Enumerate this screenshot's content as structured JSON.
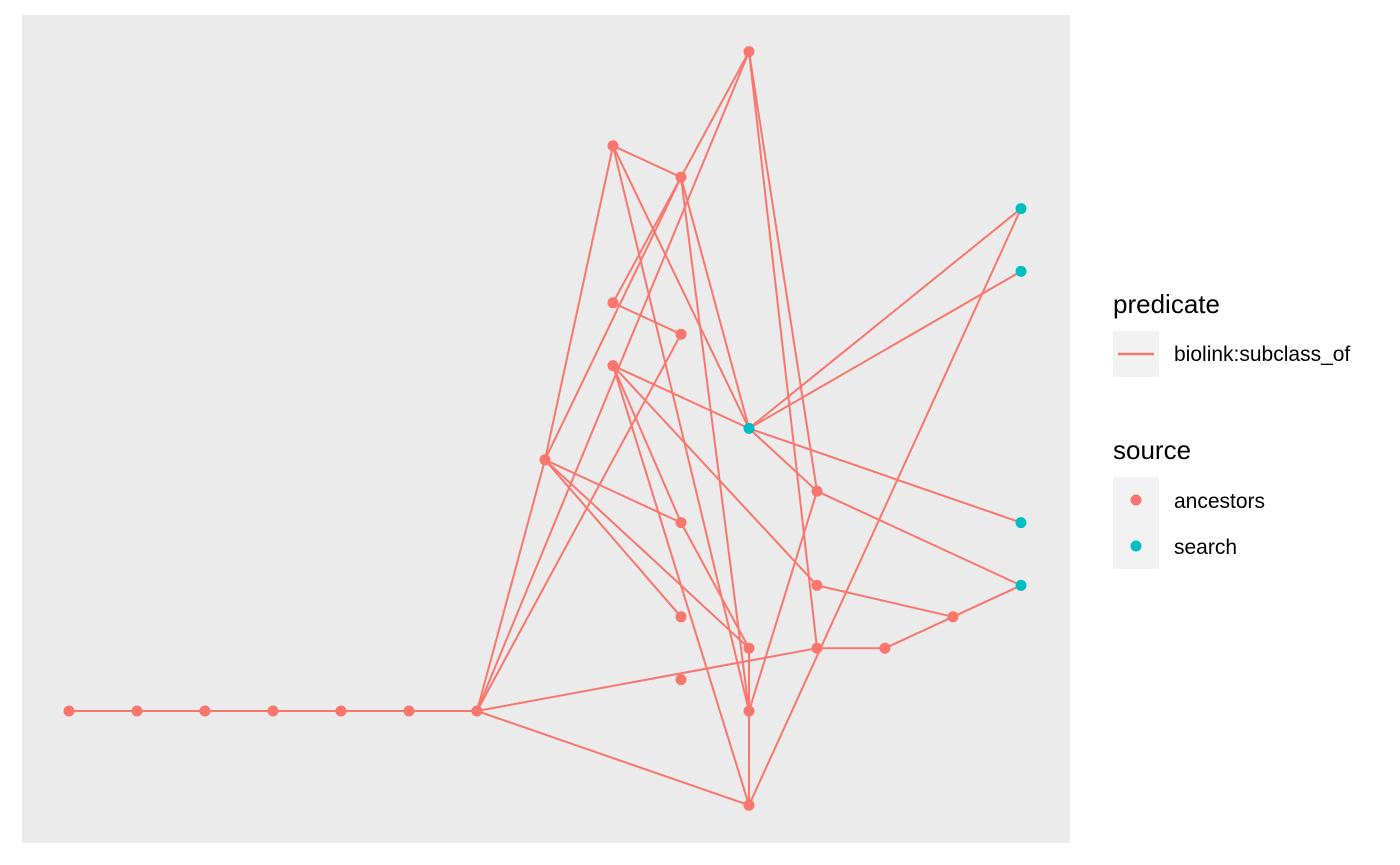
{
  "colors": {
    "panel_background": "#EBEBEB",
    "ancestors": "#F8766D",
    "search": "#00BFC4",
    "edge": "#F8766D",
    "legend_key_background": "#F2F2F2"
  },
  "legend": {
    "predicate": {
      "title": "predicate",
      "entries": [
        {
          "label": "biolink:subclass_of",
          "color": "#F8766D"
        }
      ]
    },
    "source": {
      "title": "source",
      "entries": [
        {
          "label": "ancestors",
          "color": "#F8766D"
        },
        {
          "label": "search",
          "color": "#00BFC4"
        }
      ]
    }
  },
  "graph": {
    "nodes": [
      {
        "id": "n1",
        "x": 0,
        "y": 0,
        "source": "ancestors"
      },
      {
        "id": "n2",
        "x": 1,
        "y": 0,
        "source": "ancestors"
      },
      {
        "id": "n3",
        "x": 2,
        "y": 0,
        "source": "ancestors"
      },
      {
        "id": "n4",
        "x": 3,
        "y": 0,
        "source": "ancestors"
      },
      {
        "id": "n5",
        "x": 4,
        "y": 0,
        "source": "ancestors"
      },
      {
        "id": "n6",
        "x": 5,
        "y": 0,
        "source": "ancestors"
      },
      {
        "id": "n7",
        "x": 6,
        "y": 0,
        "source": "ancestors"
      },
      {
        "id": "n8",
        "x": 7,
        "y": 8,
        "source": "ancestors"
      },
      {
        "id": "n9",
        "x": 8,
        "y": 18,
        "source": "ancestors"
      },
      {
        "id": "n10",
        "x": 8,
        "y": 13,
        "source": "ancestors"
      },
      {
        "id": "n11",
        "x": 8,
        "y": 11,
        "source": "ancestors"
      },
      {
        "id": "n12",
        "x": 9,
        "y": 17,
        "source": "ancestors"
      },
      {
        "id": "n13",
        "x": 9,
        "y": 12,
        "source": "ancestors"
      },
      {
        "id": "n14",
        "x": 9,
        "y": 6,
        "source": "ancestors"
      },
      {
        "id": "n15",
        "x": 9,
        "y": 3,
        "source": "ancestors"
      },
      {
        "id": "n16",
        "x": 9,
        "y": 1,
        "source": "ancestors"
      },
      {
        "id": "n17",
        "x": 10,
        "y": 21,
        "source": "ancestors"
      },
      {
        "id": "n18",
        "x": 10,
        "y": 9,
        "source": "search"
      },
      {
        "id": "n19",
        "x": 10,
        "y": 2,
        "source": "ancestors"
      },
      {
        "id": "n20",
        "x": 10,
        "y": 0,
        "source": "ancestors"
      },
      {
        "id": "n21",
        "x": 10,
        "y": -3,
        "source": "ancestors"
      },
      {
        "id": "n22",
        "x": 11,
        "y": 7,
        "source": "ancestors"
      },
      {
        "id": "n23",
        "x": 11,
        "y": 4,
        "source": "ancestors"
      },
      {
        "id": "n24",
        "x": 11,
        "y": 2,
        "source": "ancestors"
      },
      {
        "id": "n25",
        "x": 12,
        "y": 2,
        "source": "ancestors"
      },
      {
        "id": "n26",
        "x": 13,
        "y": 3,
        "source": "ancestors"
      },
      {
        "id": "n27",
        "x": 14,
        "y": 16,
        "source": "search"
      },
      {
        "id": "n28",
        "x": 14,
        "y": 14,
        "source": "search"
      },
      {
        "id": "n29",
        "x": 14,
        "y": 6,
        "source": "search"
      },
      {
        "id": "n30",
        "x": 14,
        "y": 4,
        "source": "search"
      }
    ],
    "edges": [
      [
        "n1",
        "n2"
      ],
      [
        "n2",
        "n3"
      ],
      [
        "n3",
        "n4"
      ],
      [
        "n4",
        "n5"
      ],
      [
        "n5",
        "n6"
      ],
      [
        "n6",
        "n7"
      ],
      [
        "n7",
        "n8"
      ],
      [
        "n7",
        "n21"
      ],
      [
        "n7",
        "n13"
      ],
      [
        "n7",
        "n17"
      ],
      [
        "n7",
        "n24"
      ],
      [
        "n8",
        "n9"
      ],
      [
        "n8",
        "n19"
      ],
      [
        "n8",
        "n14"
      ],
      [
        "n8",
        "n12"
      ],
      [
        "n8",
        "n15"
      ],
      [
        "n9",
        "n12"
      ],
      [
        "n9",
        "n20"
      ],
      [
        "n11",
        "n18"
      ],
      [
        "n11",
        "n14"
      ],
      [
        "n11",
        "n21"
      ],
      [
        "n10",
        "n13"
      ],
      [
        "n10",
        "n17"
      ],
      [
        "n11",
        "n23"
      ],
      [
        "n19",
        "n21"
      ],
      [
        "n12",
        "n20"
      ],
      [
        "n12",
        "n18"
      ],
      [
        "n9",
        "n18"
      ],
      [
        "n18",
        "n27"
      ],
      [
        "n18",
        "n28"
      ],
      [
        "n18",
        "n29"
      ],
      [
        "n18",
        "n22"
      ],
      [
        "n21",
        "n27"
      ],
      [
        "n22",
        "n20"
      ],
      [
        "n22",
        "n17"
      ],
      [
        "n22",
        "n30"
      ],
      [
        "n23",
        "n26"
      ],
      [
        "n24",
        "n17"
      ],
      [
        "n24",
        "n25"
      ],
      [
        "n25",
        "n26"
      ],
      [
        "n26",
        "n30"
      ],
      [
        "n14",
        "n19"
      ]
    ]
  }
}
